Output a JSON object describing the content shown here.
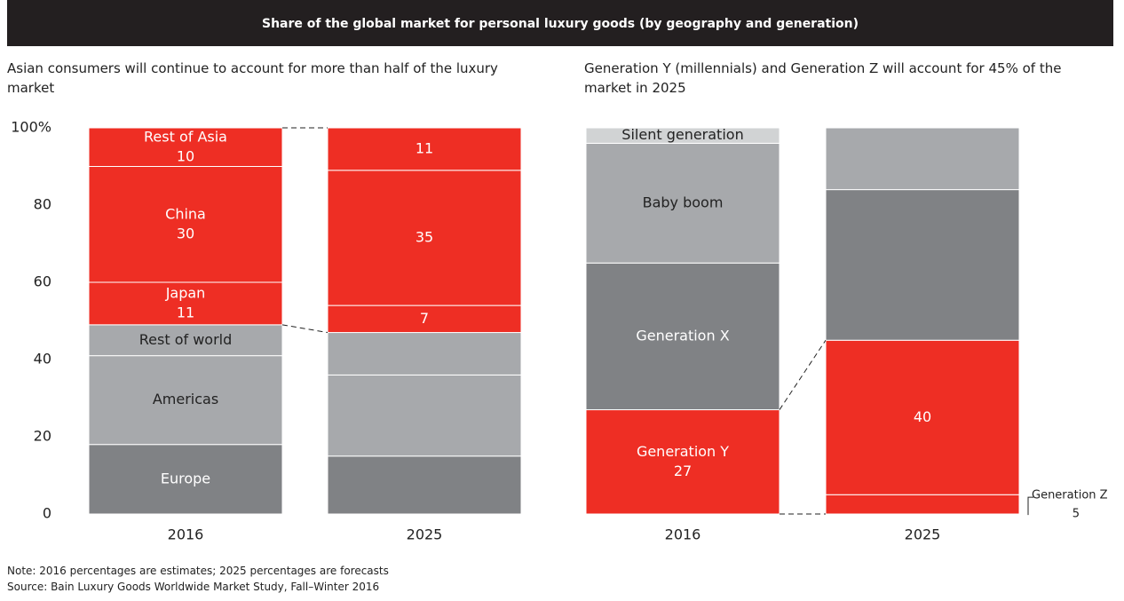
{
  "header": {
    "title": "Share of the global market for personal luxury goods (by geography and generation)"
  },
  "notes": [
    "Note: 2016 percentages are estimates; 2025 percentages are forecasts",
    "Source: Bain Luxury Goods Worldwide Market Study, Fall–Winter 2016"
  ],
  "chart_data": [
    {
      "type": "bar",
      "stacked": true,
      "title": "Asian consumers will continue to account for more than half of the luxury market",
      "categories": [
        "2016",
        "2025"
      ],
      "ylim": [
        0,
        100
      ],
      "yticks": [
        0,
        20,
        40,
        60,
        80,
        {
          "value": 100,
          "label": "100%"
        }
      ],
      "series": [
        {
          "name": "Europe",
          "color": "#808285",
          "values": [
            18,
            15
          ]
        },
        {
          "name": "Americas",
          "color": "#a7a9ac",
          "values": [
            23,
            21
          ]
        },
        {
          "name": "Rest of world",
          "color": "#a7a9ac",
          "values": [
            8,
            11
          ]
        },
        {
          "name": "Japan",
          "color": "#ee2e24",
          "values": [
            11,
            7
          ],
          "value_labels": [
            "11",
            "7"
          ]
        },
        {
          "name": "China",
          "color": "#ee2e24",
          "values": [
            30,
            35
          ],
          "value_labels": [
            "30",
            "35"
          ]
        },
        {
          "name": "Rest of Asia",
          "color": "#ee2e24",
          "values": [
            10,
            11
          ],
          "value_labels": [
            "10",
            "11"
          ]
        }
      ]
    },
    {
      "type": "bar",
      "stacked": true,
      "title": "Generation Y (millennials) and Generation Z will account for 45% of the market in 2025",
      "categories": [
        "2016",
        "2025"
      ],
      "ylim": [
        0,
        100
      ],
      "series": [
        {
          "name": "Generation Z",
          "color": "#ee2e24",
          "values": [
            null,
            5
          ],
          "value_labels": [
            null,
            "5"
          ]
        },
        {
          "name": "Generation Y",
          "color": "#ee2e24",
          "values": [
            27,
            40
          ],
          "value_labels": [
            "27",
            "40"
          ]
        },
        {
          "name": "Generation X",
          "color": "#808285",
          "values": [
            38,
            39
          ]
        },
        {
          "name": "Baby boom",
          "color": "#a7a9ac",
          "values": [
            31,
            16
          ]
        },
        {
          "name": "Silent generation",
          "color": "#d1d3d4",
          "values": [
            4,
            null
          ]
        }
      ]
    }
  ]
}
